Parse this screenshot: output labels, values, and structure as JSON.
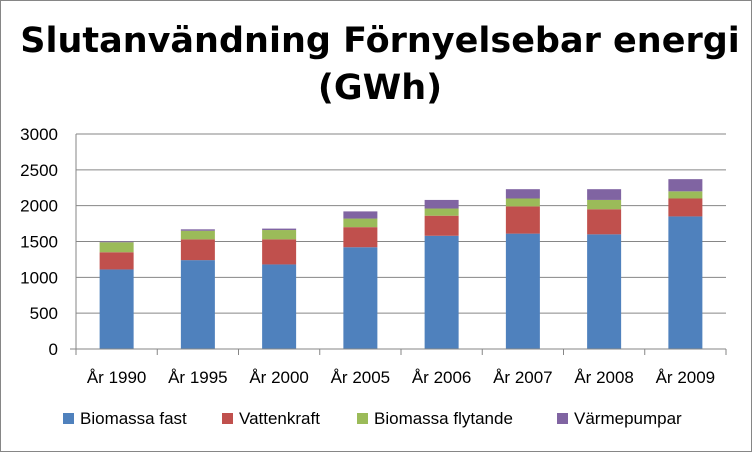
{
  "chart_data": {
    "type": "bar",
    "stacked": true,
    "title": "Slutanvändning Förnyelsebar energi (GWh)",
    "title_lines": [
      "Slutanvändning Förnyelsebar energi",
      "(GWh)"
    ],
    "xlabel": "",
    "ylabel": "",
    "categories": [
      "År 1990",
      "År 1995",
      "År 2000",
      "År 2005",
      "År 2006",
      "År 2007",
      "År 2008",
      "År 2009"
    ],
    "ylim": [
      0,
      3000
    ],
    "yticks": [
      0,
      500,
      1000,
      1500,
      2000,
      2500,
      3000
    ],
    "grid": true,
    "legend_position": "bottom",
    "series": [
      {
        "name": "Biomassa fast",
        "color": "#4F81BD",
        "values": [
          1110,
          1240,
          1180,
          1420,
          1580,
          1610,
          1600,
          1850
        ]
      },
      {
        "name": "Vattenkraft",
        "color": "#C0504D",
        "values": [
          240,
          290,
          350,
          280,
          280,
          380,
          350,
          250
        ]
      },
      {
        "name": "Biomassa flytande",
        "color": "#9BBB59",
        "values": [
          140,
          120,
          130,
          120,
          100,
          110,
          130,
          100
        ]
      },
      {
        "name": "Värmepumpar",
        "color": "#8064A2",
        "values": [
          10,
          20,
          20,
          100,
          120,
          130,
          150,
          170
        ]
      }
    ]
  }
}
